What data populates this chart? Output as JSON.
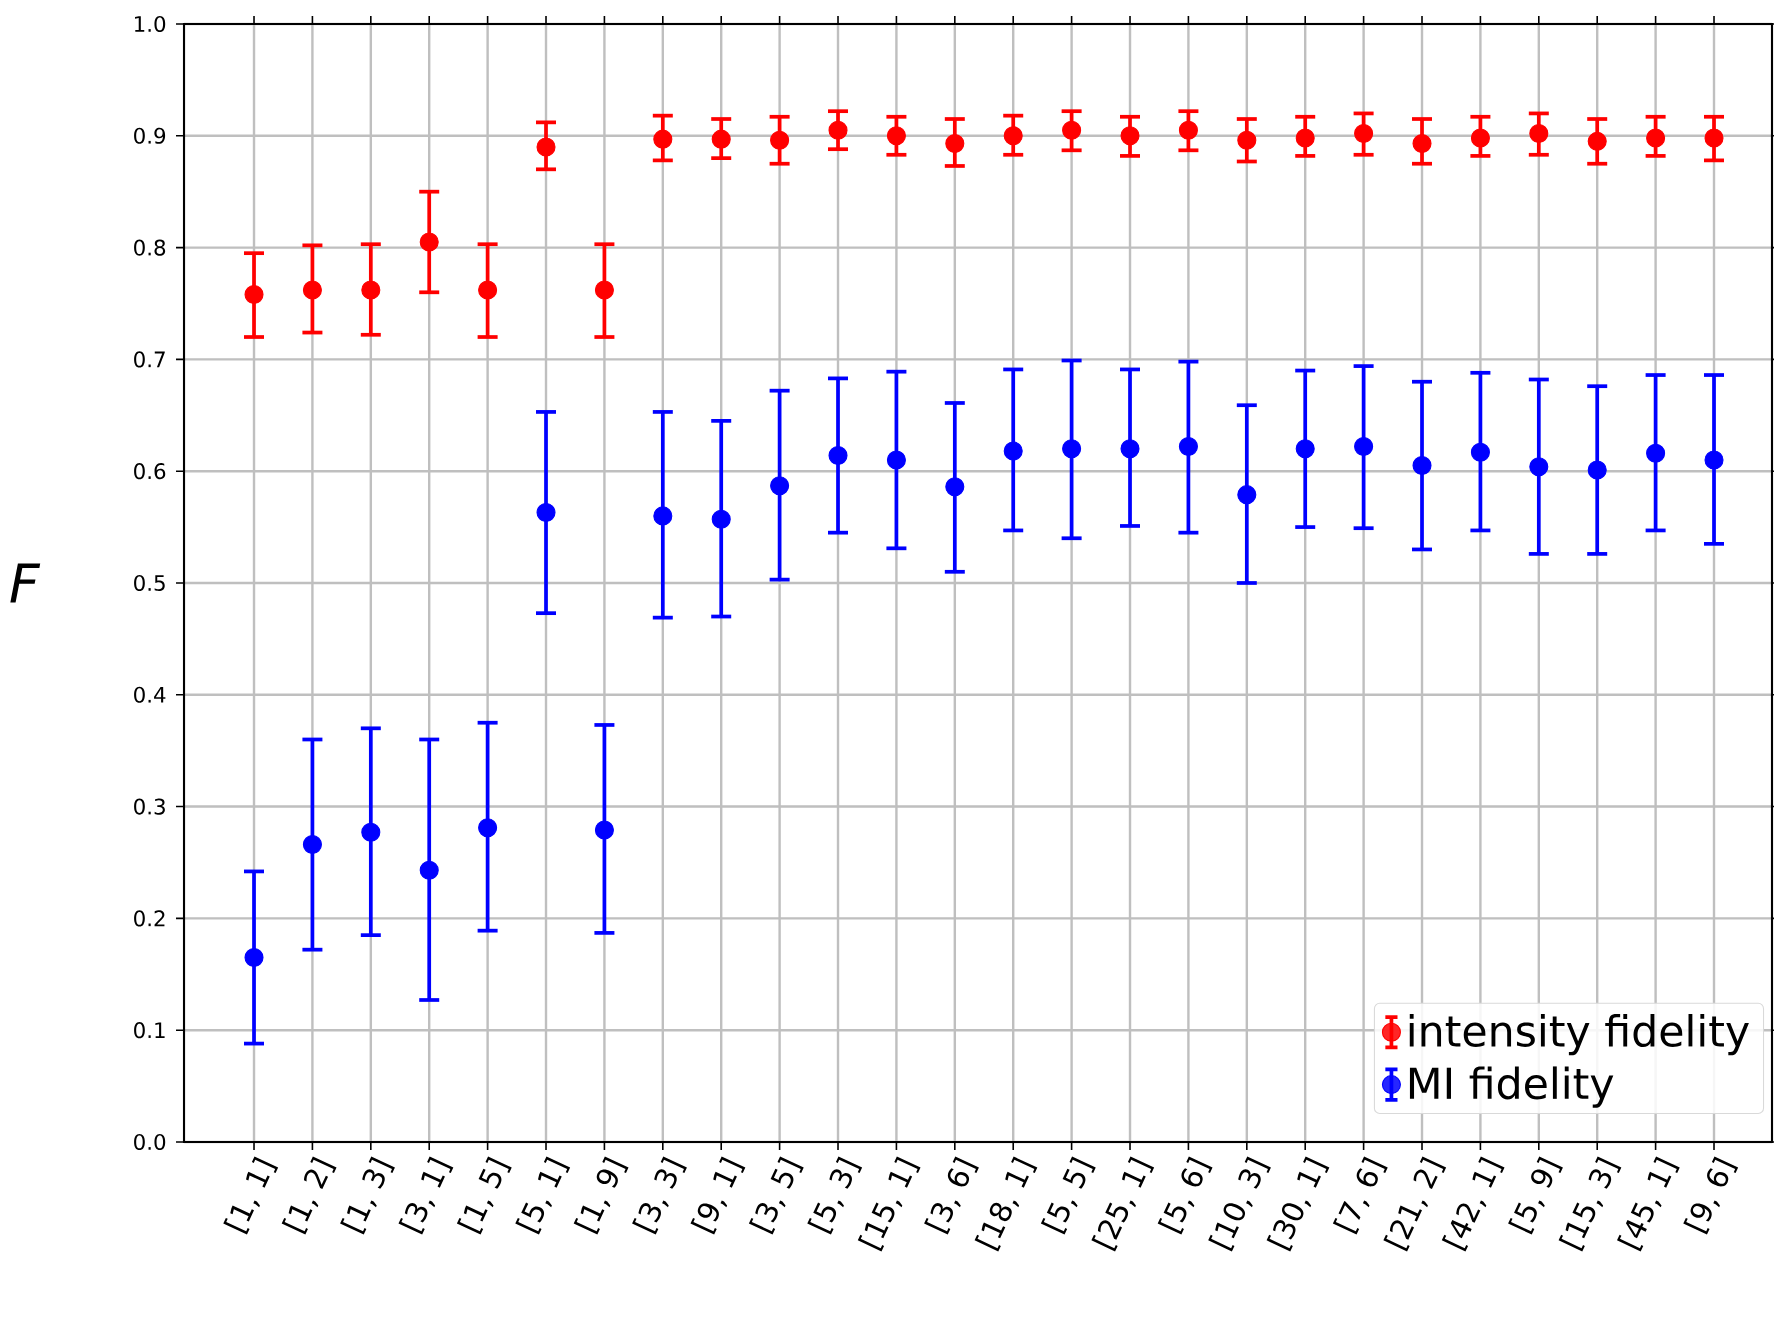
{
  "chart_data": {
    "type": "scatter",
    "ylabel": "F",
    "categories": [
      "[1, 1]",
      "[1, 2]",
      "[1, 3]",
      "[3, 1]",
      "[1, 5]",
      "[5, 1]",
      "[1, 9]",
      "[3, 3]",
      "[9, 1]",
      "[3, 5]",
      "[5, 3]",
      "[15, 1]",
      "[3, 6]",
      "[18, 1]",
      "[5, 5]",
      "[25, 1]",
      "[5, 6]",
      "[10, 3]",
      "[30, 1]",
      "[7, 6]",
      "[21, 2]",
      "[42, 1]",
      "[5, 9]",
      "[15, 3]",
      "[45, 1]",
      "[9, 6]"
    ],
    "series": [
      {
        "name": "intensity fidelity",
        "color": "#ff0000",
        "values": [
          0.758,
          0.762,
          0.762,
          0.805,
          0.762,
          0.89,
          0.762,
          0.897,
          0.897,
          0.896,
          0.905,
          0.9,
          0.893,
          0.9,
          0.905,
          0.9,
          0.905,
          0.896,
          0.898,
          0.902,
          0.893,
          0.898,
          0.902,
          0.895,
          0.898,
          0.898
        ],
        "errors": [
          [
            0.72,
            0.795
          ],
          [
            0.724,
            0.802
          ],
          [
            0.722,
            0.803
          ],
          [
            0.76,
            0.85
          ],
          [
            0.72,
            0.803
          ],
          [
            0.87,
            0.912
          ],
          [
            0.72,
            0.803
          ],
          [
            0.878,
            0.918
          ],
          [
            0.88,
            0.915
          ],
          [
            0.875,
            0.917
          ],
          [
            0.888,
            0.922
          ],
          [
            0.883,
            0.917
          ],
          [
            0.873,
            0.915
          ],
          [
            0.883,
            0.918
          ],
          [
            0.887,
            0.922
          ],
          [
            0.882,
            0.917
          ],
          [
            0.887,
            0.922
          ],
          [
            0.877,
            0.915
          ],
          [
            0.882,
            0.917
          ],
          [
            0.883,
            0.92
          ],
          [
            0.875,
            0.915
          ],
          [
            0.882,
            0.917
          ],
          [
            0.883,
            0.92
          ],
          [
            0.875,
            0.915
          ],
          [
            0.882,
            0.917
          ],
          [
            0.878,
            0.917
          ]
        ]
      },
      {
        "name": "MI fidelity",
        "color": "#0000ff",
        "values": [
          0.165,
          0.266,
          0.277,
          0.243,
          0.281,
          0.563,
          0.279,
          0.56,
          0.557,
          0.587,
          0.614,
          0.61,
          0.586,
          0.618,
          0.62,
          0.62,
          0.622,
          0.579,
          0.62,
          0.622,
          0.605,
          0.617,
          0.604,
          0.601,
          0.616,
          0.61
        ],
        "errors": [
          [
            0.088,
            0.242
          ],
          [
            0.172,
            0.36
          ],
          [
            0.185,
            0.37
          ],
          [
            0.127,
            0.36
          ],
          [
            0.189,
            0.375
          ],
          [
            0.473,
            0.653
          ],
          [
            0.187,
            0.373
          ],
          [
            0.469,
            0.653
          ],
          [
            0.47,
            0.645
          ],
          [
            0.503,
            0.672
          ],
          [
            0.545,
            0.683
          ],
          [
            0.531,
            0.689
          ],
          [
            0.51,
            0.661
          ],
          [
            0.547,
            0.691
          ],
          [
            0.54,
            0.699
          ],
          [
            0.551,
            0.691
          ],
          [
            0.545,
            0.698
          ],
          [
            0.5,
            0.659
          ],
          [
            0.55,
            0.69
          ],
          [
            0.549,
            0.694
          ],
          [
            0.53,
            0.68
          ],
          [
            0.547,
            0.688
          ],
          [
            0.526,
            0.682
          ],
          [
            0.526,
            0.676
          ],
          [
            0.547,
            0.686
          ],
          [
            0.535,
            0.686
          ]
        ]
      }
    ],
    "ylim": [
      0.0,
      1.0
    ],
    "yticks": [
      {
        "value": 0.0,
        "label": "0.0"
      },
      {
        "value": 0.1,
        "label": "0.1"
      },
      {
        "value": 0.2,
        "label": "0.2"
      },
      {
        "value": 0.3,
        "label": "0.3"
      },
      {
        "value": 0.4,
        "label": "0.4"
      },
      {
        "value": 0.5,
        "label": "0.5"
      },
      {
        "value": 0.6,
        "label": "0.6"
      },
      {
        "value": 0.7,
        "label": "0.7"
      },
      {
        "value": 0.8,
        "label": "0.8"
      },
      {
        "value": 0.9,
        "label": "0.9"
      },
      {
        "value": 1.0,
        "label": "1.0"
      }
    ],
    "grid": true,
    "legend": "bottom right",
    "marker": "circle"
  }
}
